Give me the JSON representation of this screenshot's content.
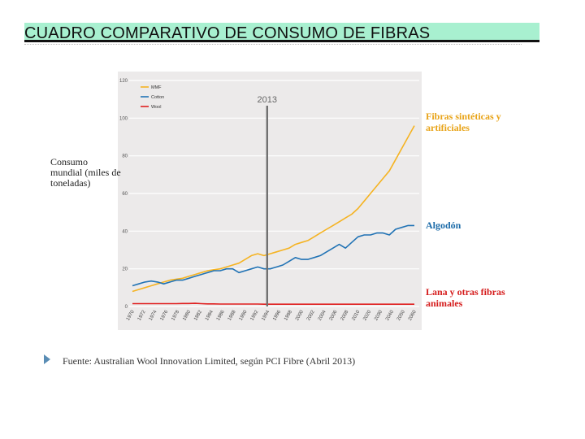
{
  "page": {
    "title": "CUADRO COMPARATIVO DE CONSUMO DE FIBRAS",
    "source": "Fuente: Australian Wool Innovation Limited, según PCI Fibre (Abril 2013)"
  },
  "annotations": {
    "ylabel": "Consumo mundial (miles de toneladas)",
    "mmf": "Fibras sintéticas y artificiales",
    "cotton": "Algodón",
    "wool": "Lana y otras fibras animales"
  },
  "chart_data": {
    "type": "line",
    "ylim": [
      0,
      120
    ],
    "yticks": [
      "0",
      "20",
      "40",
      "60",
      "80",
      "100",
      "120"
    ],
    "xlim": [
      1970,
      2060
    ],
    "xticks": [
      "1970",
      "1972",
      "1974",
      "1976",
      "1978",
      "1980",
      "1982",
      "1984",
      "1986",
      "1988",
      "1990",
      "1992",
      "1994",
      "1996",
      "1998",
      "2000",
      "2002",
      "2004",
      "2006",
      "2008",
      "2010",
      "2020",
      "2030",
      "2040",
      "2050",
      "2060"
    ],
    "vline_label": "2013",
    "vline_x": 2013,
    "grid": true,
    "legend_position": "top-left",
    "x": [
      1970,
      1972,
      1974,
      1976,
      1978,
      1980,
      1982,
      1984,
      1986,
      1988,
      1990,
      1992,
      1994,
      1996,
      1998,
      2000,
      2002,
      2004,
      2006,
      2008,
      2010,
      2012,
      2014,
      2016,
      2018,
      2020,
      2022,
      2024,
      2026,
      2028,
      2030,
      2032,
      2034,
      2036,
      2038,
      2040,
      2042,
      2044,
      2046,
      2048,
      2050,
      2052,
      2054,
      2056,
      2058,
      2060
    ],
    "series": [
      {
        "name": "MMF",
        "color": "#f5b322",
        "values": [
          8,
          9,
          10,
          11,
          12,
          13,
          14,
          14.5,
          15,
          16,
          17,
          18,
          19,
          19.5,
          20,
          21,
          22,
          23,
          25,
          27,
          28,
          27,
          28,
          29,
          30,
          31,
          33,
          34,
          35,
          37,
          39,
          41,
          43,
          45,
          47,
          49,
          52,
          56,
          60,
          64,
          68,
          72,
          78,
          84,
          90,
          96
        ]
      },
      {
        "name": "Cotton",
        "color": "#2173b5",
        "values": [
          11,
          12,
          13,
          13.5,
          13,
          12,
          13,
          14,
          14,
          15,
          16,
          17,
          18,
          19,
          19,
          20,
          20,
          18,
          19,
          20,
          21,
          20,
          20,
          21,
          22,
          24,
          26,
          25,
          25,
          26,
          27,
          29,
          31,
          33,
          31,
          34,
          37,
          38,
          38,
          39,
          39,
          38,
          41,
          42,
          43,
          43
        ]
      },
      {
        "name": "Wool",
        "color": "#e02020",
        "values": [
          1.5,
          1.5,
          1.5,
          1.5,
          1.5,
          1.5,
          1.5,
          1.5,
          1.6,
          1.6,
          1.7,
          1.5,
          1.4,
          1.4,
          1.3,
          1.3,
          1.3,
          1.3,
          1.3,
          1.3,
          1.3,
          1.2,
          1.2,
          1.2,
          1.2,
          1.2,
          1.2,
          1.2,
          1.2,
          1.2,
          1.2,
          1.2,
          1.2,
          1.2,
          1.2,
          1.2,
          1.2,
          1.2,
          1.2,
          1.2,
          1.2,
          1.2,
          1.2,
          1.2,
          1.2,
          1.2
        ]
      }
    ]
  }
}
